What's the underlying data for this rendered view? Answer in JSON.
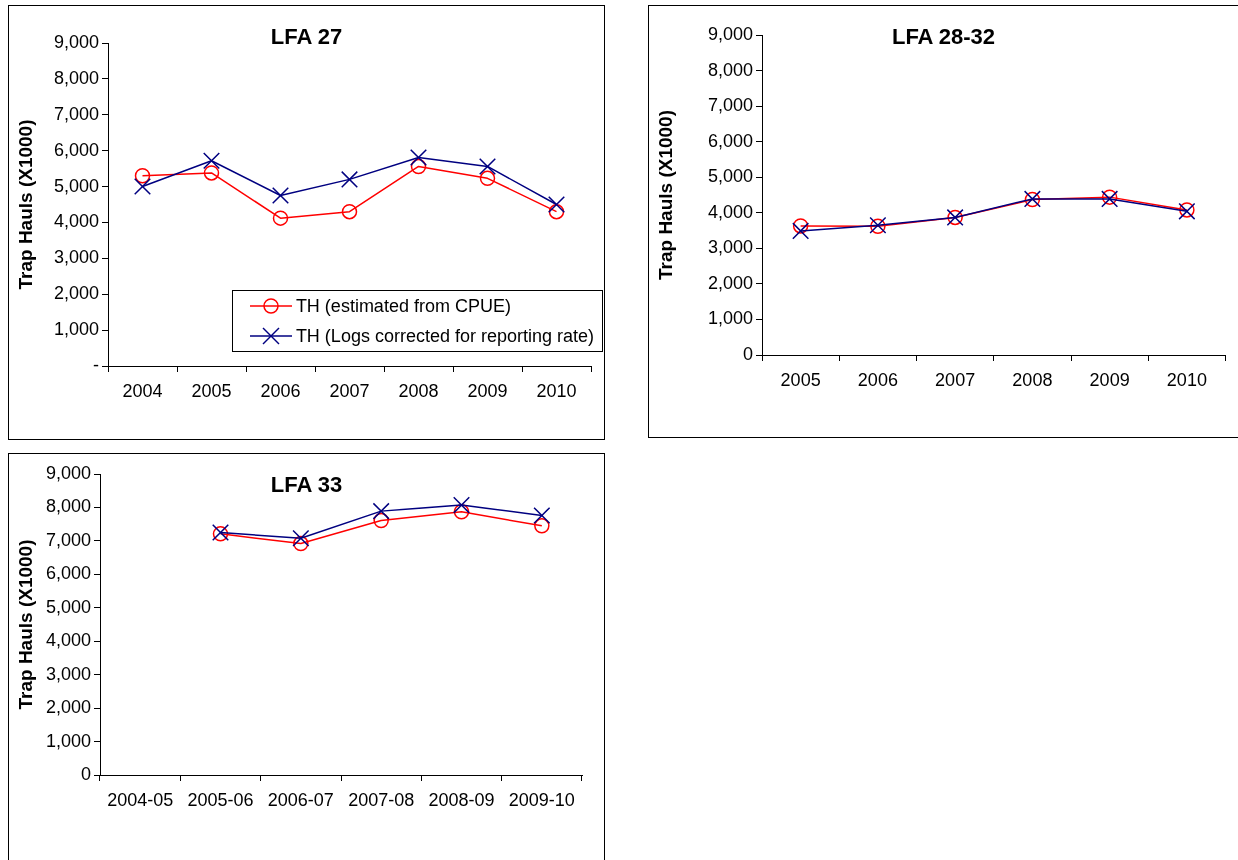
{
  "chart_data": [
    {
      "type": "line",
      "title": "LFA 27",
      "ylabel": "Trap Hauls (X1000)",
      "categories": [
        "2004",
        "2005",
        "2006",
        "2007",
        "2008",
        "2009",
        "2010"
      ],
      "series": [
        {
          "name": "TH (estimated from CPUE)",
          "color": "#ff0000",
          "marker": "circle",
          "values": [
            5300,
            5380,
            4120,
            4300,
            5560,
            5230,
            4300
          ]
        },
        {
          "name": "TH (Logs corrected for reporting rate)",
          "color": "#000080",
          "marker": "cross",
          "values": [
            5000,
            5720,
            4750,
            5200,
            5810,
            5560,
            4500
          ]
        }
      ],
      "ylim": [
        0,
        9000
      ],
      "yticks": [
        {
          "value": 0,
          "label": "-"
        },
        {
          "value": 1000,
          "label": "1,000"
        },
        {
          "value": 2000,
          "label": "2,000"
        },
        {
          "value": 3000,
          "label": "3,000"
        },
        {
          "value": 4000,
          "label": "4,000"
        },
        {
          "value": 5000,
          "label": "5,000"
        },
        {
          "value": 6000,
          "label": "6,000"
        },
        {
          "value": 7000,
          "label": "7,000"
        },
        {
          "value": 8000,
          "label": "8,000"
        },
        {
          "value": 9000,
          "label": "9,000"
        }
      ],
      "legend": "bottom right"
    },
    {
      "type": "line",
      "title": "LFA 28-32",
      "ylabel": "Trap Hauls (X1000)",
      "categories": [
        "2005",
        "2006",
        "2007",
        "2008",
        "2009",
        "2010"
      ],
      "series": [
        {
          "color": "#ff0000",
          "marker": "circle",
          "values": [
            3630,
            3620,
            3870,
            4370,
            4440,
            4080
          ]
        },
        {
          "color": "#000080",
          "marker": "cross",
          "values": [
            3490,
            3650,
            3870,
            4390,
            4390,
            4040
          ]
        }
      ],
      "ylim": [
        0,
        9000
      ],
      "yticks": [
        0,
        {
          "value": 1000,
          "label": "1,000"
        },
        {
          "value": 2000,
          "label": "2,000"
        },
        {
          "value": 3000,
          "label": "3,000"
        },
        {
          "value": 4000,
          "label": "4,000"
        },
        {
          "value": 5000,
          "label": "5,000"
        },
        {
          "value": 6000,
          "label": "6,000"
        },
        {
          "value": 7000,
          "label": "7,000"
        },
        {
          "value": 8000,
          "label": "8,000"
        },
        {
          "value": 9000,
          "label": "9,000"
        }
      ]
    },
    {
      "type": "line",
      "title": "LFA 33",
      "ylabel": "Trap Hauls (X1000)",
      "categories": [
        "2004-05",
        "2005-06",
        "2006-07",
        "2007-08",
        "2008-09",
        "2009-10"
      ],
      "series": [
        {
          "color": "#ff0000",
          "marker": "circle",
          "values": [
            null,
            7210,
            6920,
            7610,
            7870,
            7450
          ]
        },
        {
          "color": "#000080",
          "marker": "cross",
          "values": [
            null,
            7250,
            7080,
            7890,
            8070,
            7760
          ]
        }
      ],
      "ylim": [
        0,
        9000
      ],
      "yticks": [
        0,
        {
          "value": 1000,
          "label": "1,000"
        },
        {
          "value": 2000,
          "label": "2,000"
        },
        {
          "value": 3000,
          "label": "3,000"
        },
        {
          "value": 4000,
          "label": "4,000"
        },
        {
          "value": 5000,
          "label": "5,000"
        },
        {
          "value": 6000,
          "label": "6,000"
        },
        {
          "value": 7000,
          "label": "7,000"
        },
        {
          "value": 8000,
          "label": "8,000"
        },
        {
          "value": 9000,
          "label": "9,000"
        }
      ]
    }
  ]
}
